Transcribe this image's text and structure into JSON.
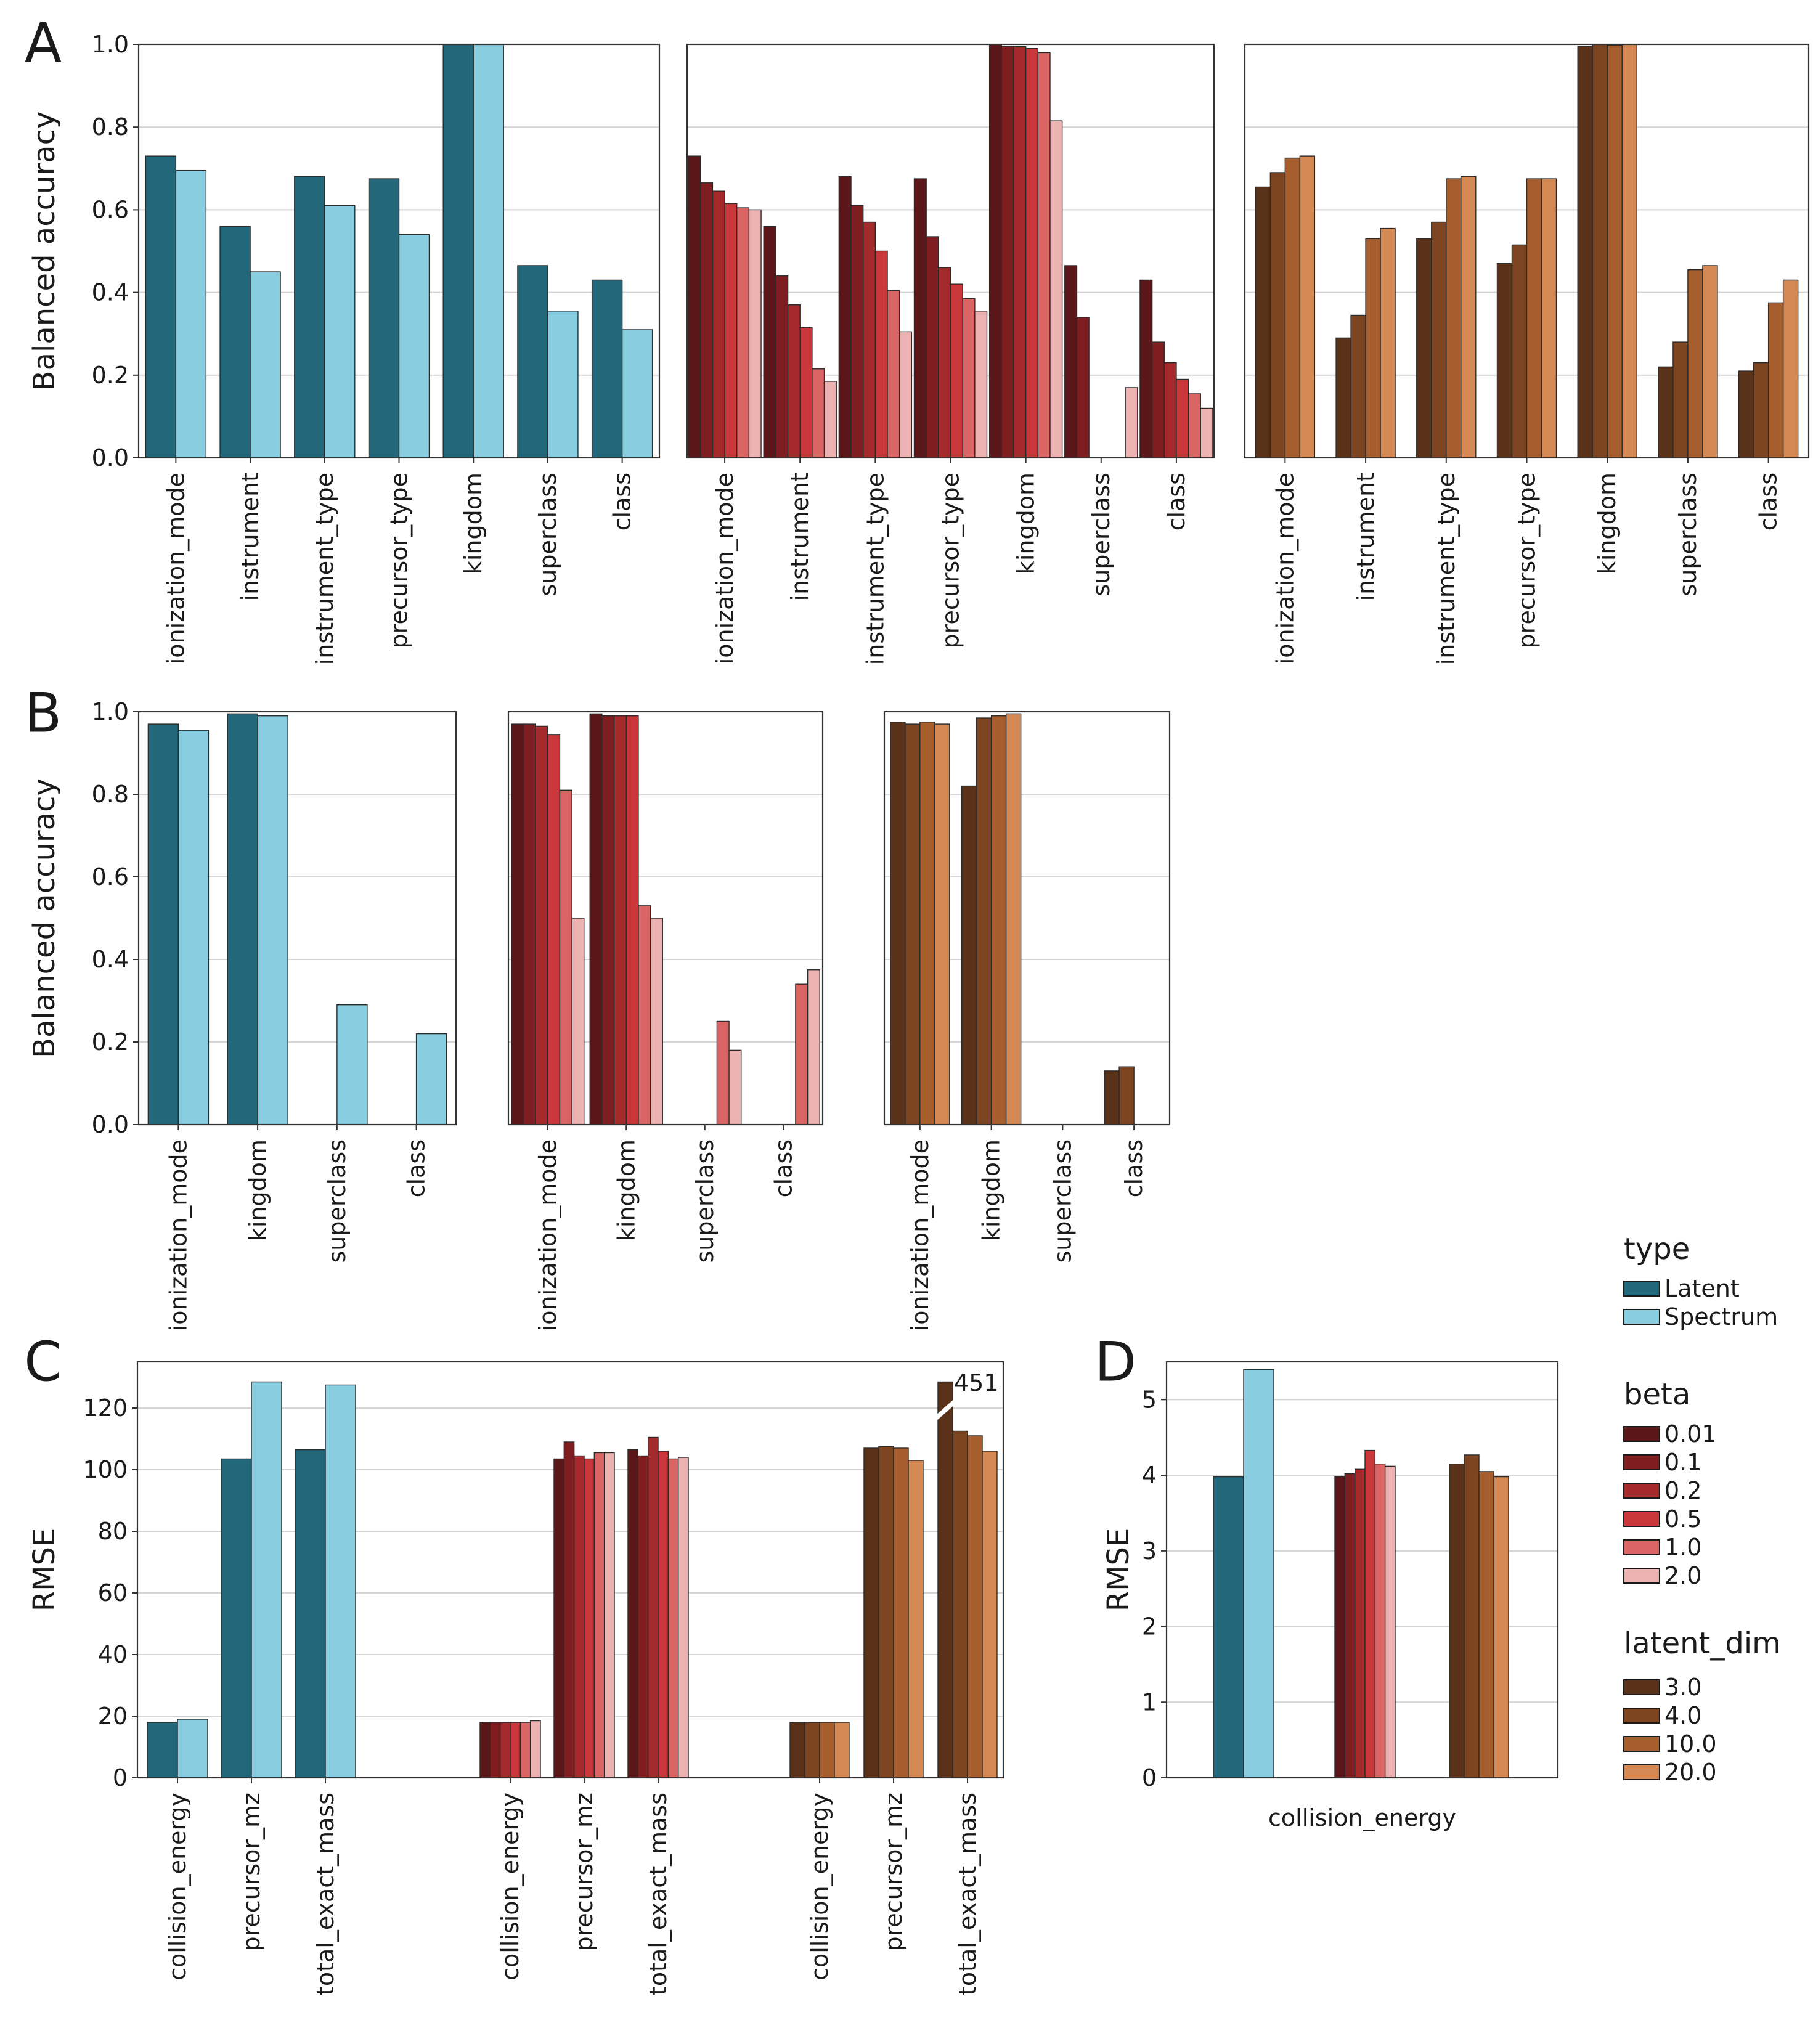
{
  "colors": {
    "type": {
      "Latent": "#22677a",
      "Spectrum": "#89cde0"
    },
    "beta": [
      "#5a1619",
      "#7e1e20",
      "#a42a2c",
      "#c9373b",
      "#d96565",
      "#ecb2b2"
    ],
    "latent_dim": [
      "#593219",
      "#7c4420",
      "#a65e2e",
      "#d48955"
    ],
    "axis": "#333333",
    "grid": "#d4d4d4"
  },
  "legend": {
    "type": {
      "title": "type",
      "items": [
        "Latent",
        "Spectrum"
      ]
    },
    "beta": {
      "title": "beta",
      "items": [
        "0.01",
        "0.1",
        "0.2",
        "0.5",
        "1.0",
        "2.0"
      ]
    },
    "latent_dim": {
      "title": "latent_dim",
      "items": [
        "3.0",
        "4.0",
        "10.0",
        "20.0"
      ]
    }
  },
  "chart_data": [
    {
      "panel": "A",
      "group": "type",
      "type": "bar",
      "ylabel": "Balanced accuracy",
      "ylim": [
        0,
        1.0
      ],
      "yticks": [
        "0.0",
        "0.2",
        "0.4",
        "0.6",
        "0.8",
        "1.0"
      ],
      "categories": [
        "ionization_mode",
        "instrument",
        "instrument_type",
        "precursor_type",
        "kingdom",
        "superclass",
        "class"
      ],
      "series": [
        {
          "name": "Latent",
          "values": [
            0.73,
            0.56,
            0.68,
            0.675,
            1.0,
            0.465,
            0.43
          ]
        },
        {
          "name": "Spectrum",
          "values": [
            0.695,
            0.45,
            0.61,
            0.54,
            1.0,
            0.355,
            0.31
          ]
        }
      ]
    },
    {
      "panel": "A",
      "group": "beta",
      "type": "bar",
      "ylabel": "",
      "ylim": [
        0,
        1.0
      ],
      "yticks": [],
      "categories": [
        "ionization_mode",
        "instrument",
        "instrument_type",
        "precursor_type",
        "kingdom",
        "superclass",
        "class"
      ],
      "series": [
        {
          "name": "0.01",
          "values": [
            0.73,
            0.56,
            0.68,
            0.675,
            1.0,
            0.465,
            0.43
          ]
        },
        {
          "name": "0.1",
          "values": [
            0.665,
            0.44,
            0.61,
            0.535,
            0.995,
            0.34,
            0.28
          ]
        },
        {
          "name": "0.2",
          "values": [
            0.645,
            0.37,
            0.57,
            0.46,
            0.995,
            0,
            0.23
          ]
        },
        {
          "name": "0.5",
          "values": [
            0.615,
            0.315,
            0.5,
            0.42,
            0.99,
            0,
            0.19
          ]
        },
        {
          "name": "1.0",
          "values": [
            0.605,
            0.215,
            0.405,
            0.385,
            0.98,
            0,
            0.155
          ]
        },
        {
          "name": "2.0",
          "values": [
            0.6,
            0.185,
            0.305,
            0.355,
            0.815,
            0.17,
            0.12
          ]
        }
      ]
    },
    {
      "panel": "A",
      "group": "latent_dim",
      "type": "bar",
      "ylabel": "",
      "ylim": [
        0,
        1.0
      ],
      "yticks": [],
      "categories": [
        "ionization_mode",
        "instrument",
        "instrument_type",
        "precursor_type",
        "kingdom",
        "superclass",
        "class"
      ],
      "series": [
        {
          "name": "3.0",
          "values": [
            0.655,
            0.29,
            0.53,
            0.47,
            0.995,
            0.22,
            0.21
          ]
        },
        {
          "name": "4.0",
          "values": [
            0.69,
            0.345,
            0.57,
            0.515,
            1.0,
            0.28,
            0.23
          ]
        },
        {
          "name": "10.0",
          "values": [
            0.725,
            0.53,
            0.675,
            0.675,
            0.998,
            0.455,
            0.375
          ]
        },
        {
          "name": "20.0",
          "values": [
            0.73,
            0.555,
            0.68,
            0.675,
            1.0,
            0.465,
            0.43
          ]
        }
      ]
    },
    {
      "panel": "B",
      "group": "type",
      "type": "bar",
      "ylabel": "Balanced accuracy",
      "ylim": [
        0,
        1.0
      ],
      "yticks": [
        "0.0",
        "0.2",
        "0.4",
        "0.6",
        "0.8",
        "1.0"
      ],
      "categories": [
        "ionization_mode",
        "kingdom",
        "superclass",
        "class"
      ],
      "series": [
        {
          "name": "Latent",
          "values": [
            0.97,
            0.995,
            0,
            0
          ]
        },
        {
          "name": "Spectrum",
          "values": [
            0.955,
            0.99,
            0.29,
            0.22
          ]
        }
      ]
    },
    {
      "panel": "B",
      "group": "beta",
      "type": "bar",
      "ylabel": "",
      "ylim": [
        0,
        1.0
      ],
      "yticks": [],
      "categories": [
        "ionization_mode",
        "kingdom",
        "superclass",
        "class"
      ],
      "series": [
        {
          "name": "0.01",
          "values": [
            0.97,
            0.995,
            0,
            0
          ]
        },
        {
          "name": "0.1",
          "values": [
            0.97,
            0.99,
            0,
            0
          ]
        },
        {
          "name": "0.2",
          "values": [
            0.965,
            0.99,
            0,
            0
          ]
        },
        {
          "name": "0.5",
          "values": [
            0.945,
            0.99,
            0,
            0
          ]
        },
        {
          "name": "1.0",
          "values": [
            0.81,
            0.53,
            0.25,
            0.34
          ]
        },
        {
          "name": "2.0",
          "values": [
            0.5,
            0.5,
            0.18,
            0.375
          ]
        }
      ]
    },
    {
      "panel": "B",
      "group": "latent_dim",
      "type": "bar",
      "ylabel": "",
      "ylim": [
        0,
        1.0
      ],
      "yticks": [],
      "categories": [
        "ionization_mode",
        "kingdom",
        "superclass",
        "class"
      ],
      "series": [
        {
          "name": "3.0",
          "values": [
            0.975,
            0.82,
            0,
            0.13
          ]
        },
        {
          "name": "4.0",
          "values": [
            0.97,
            0.985,
            0,
            0.14
          ]
        },
        {
          "name": "10.0",
          "values": [
            0.975,
            0.99,
            0,
            0
          ]
        },
        {
          "name": "20.0",
          "values": [
            0.97,
            0.995,
            0,
            0
          ]
        }
      ]
    },
    {
      "panel": "C",
      "type": "bar",
      "ylabel": "RMSE",
      "ylim": [
        0,
        135
      ],
      "yticks": [
        "0",
        "20",
        "40",
        "60",
        "80",
        "100",
        "120"
      ],
      "categories": [
        "collision_energy",
        "precursor_mz",
        "total_exact_mass"
      ],
      "annotation": "451",
      "groups": [
        {
          "group": "type",
          "series": [
            {
              "name": "Latent",
              "values": [
                18,
                103.5,
                106.5
              ]
            },
            {
              "name": "Spectrum",
              "values": [
                19,
                128.5,
                127.5
              ]
            }
          ]
        },
        {
          "group": "beta",
          "series": [
            {
              "name": "0.01",
              "values": [
                18,
                103.5,
                106.5
              ]
            },
            {
              "name": "0.1",
              "values": [
                18,
                109,
                104.5
              ]
            },
            {
              "name": "0.2",
              "values": [
                18,
                104.5,
                110.5
              ]
            },
            {
              "name": "0.5",
              "values": [
                18,
                103.5,
                106
              ]
            },
            {
              "name": "1.0",
              "values": [
                18,
                105.5,
                103.5
              ]
            },
            {
              "name": "2.0",
              "values": [
                18.5,
                105.5,
                104
              ]
            }
          ]
        },
        {
          "group": "latent_dim",
          "series": [
            {
              "name": "3.0",
              "values": [
                18,
                107,
                128.5
              ]
            },
            {
              "name": "4.0",
              "values": [
                18,
                107.5,
                112.5
              ]
            },
            {
              "name": "10.0",
              "values": [
                18,
                107,
                111
              ]
            },
            {
              "name": "20.0",
              "values": [
                18,
                103,
                106
              ]
            }
          ]
        }
      ]
    },
    {
      "panel": "D",
      "type": "bar",
      "ylabel": "RMSE",
      "ylim": [
        0,
        5.5
      ],
      "yticks": [
        "0",
        "1",
        "2",
        "3",
        "4",
        "5"
      ],
      "xlabel": "collision_energy",
      "groups": [
        {
          "group": "type",
          "series": [
            {
              "name": "Latent",
              "values": [
                3.98
              ]
            },
            {
              "name": "Spectrum",
              "values": [
                5.4
              ]
            }
          ]
        },
        {
          "group": "beta",
          "series": [
            {
              "name": "0.01",
              "values": [
                3.98
              ]
            },
            {
              "name": "0.1",
              "values": [
                4.02
              ]
            },
            {
              "name": "0.2",
              "values": [
                4.08
              ]
            },
            {
              "name": "0.5",
              "values": [
                4.33
              ]
            },
            {
              "name": "1.0",
              "values": [
                4.15
              ]
            },
            {
              "name": "2.0",
              "values": [
                4.12
              ]
            }
          ]
        },
        {
          "group": "latent_dim",
          "series": [
            {
              "name": "3.0",
              "values": [
                4.15
              ]
            },
            {
              "name": "4.0",
              "values": [
                4.27
              ]
            },
            {
              "name": "10.0",
              "values": [
                4.05
              ]
            },
            {
              "name": "20.0",
              "values": [
                3.98
              ]
            }
          ]
        }
      ]
    }
  ],
  "panel_labels": [
    "A",
    "B",
    "C",
    "D"
  ]
}
